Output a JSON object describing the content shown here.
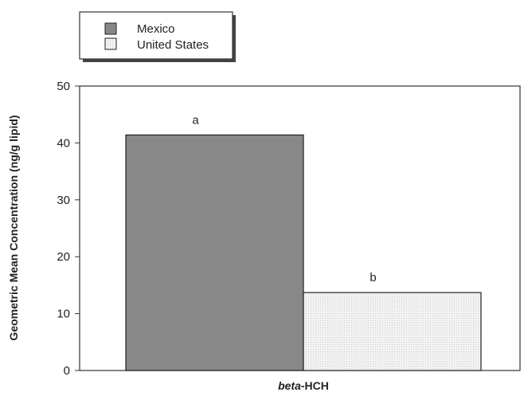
{
  "chart_data": {
    "type": "bar",
    "categories": [
      "beta-HCH"
    ],
    "xlabel_italic": "beta",
    "xlabel_rest": "-HCH",
    "ylabel": "Geometric Mean Concentration (ng/g lipid)",
    "ylim": [
      0,
      50
    ],
    "yticks": [
      "0",
      "10",
      "20",
      "30",
      "40",
      "50"
    ],
    "series": [
      {
        "name": "Mexico",
        "values": [
          41.4
        ],
        "color": "#888888",
        "label": "a"
      },
      {
        "name": "United States",
        "values": [
          13.7
        ],
        "color": "#eeeeee",
        "label": "b"
      }
    ],
    "legend_position": "top-left",
    "grid": false
  }
}
